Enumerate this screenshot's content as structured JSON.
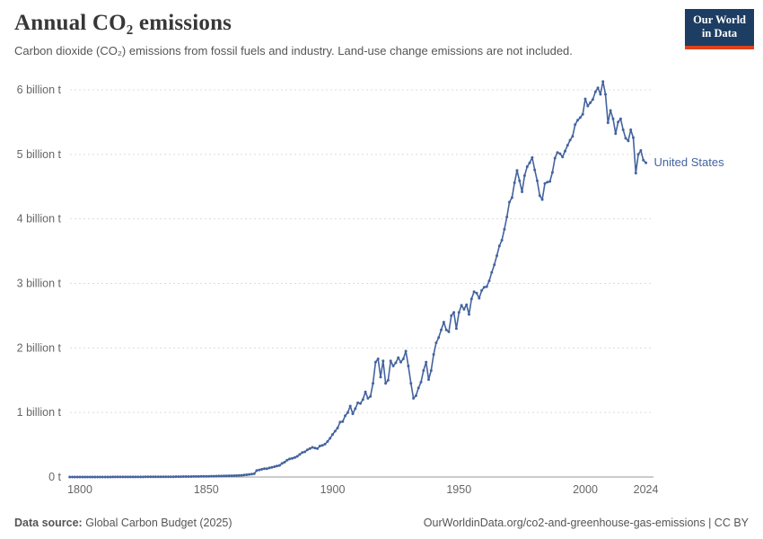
{
  "header": {
    "title": "Annual CO₂ emissions",
    "subtitle": "Carbon dioxide (CO₂) emissions from fossil fuels and industry. Land-use change emissions are not included.",
    "logo": {
      "line1": "Our World",
      "line2": "in Data",
      "bg": "#1d3d63",
      "accent": "#e0421c"
    }
  },
  "chart_data": {
    "type": "line",
    "title": "Annual CO₂ emissions",
    "xlabel": "",
    "ylabel": "",
    "xlim": [
      1796,
      2024
    ],
    "ylim": [
      0,
      6.3
    ],
    "grid": "horizontal-dashed",
    "legend_position": "line-end-label",
    "x_ticks": [
      1800,
      1850,
      1900,
      1950,
      2000,
      2024
    ],
    "y_ticks": [
      {
        "value": 0,
        "label": "0 t"
      },
      {
        "value": 1,
        "label": "1 billion t"
      },
      {
        "value": 2,
        "label": "2 billion t"
      },
      {
        "value": 3,
        "label": "3 billion t"
      },
      {
        "value": 4,
        "label": "4 billion t"
      },
      {
        "value": 5,
        "label": "5 billion t"
      },
      {
        "value": 6,
        "label": "6 billion t"
      }
    ],
    "colors": {
      "line": "#44639f",
      "grid": "#dcdcdc",
      "axis": "#9a9a9a",
      "tick_text": "#666666"
    },
    "series": [
      {
        "name": "United States",
        "color": "#44639f",
        "unit": "billion tonnes",
        "points": [
          [
            1796,
            0.0002
          ],
          [
            1800,
            0.0003
          ],
          [
            1805,
            0.0004
          ],
          [
            1810,
            0.0006
          ],
          [
            1815,
            0.0008
          ],
          [
            1820,
            0.001
          ],
          [
            1825,
            0.002
          ],
          [
            1830,
            0.003
          ],
          [
            1835,
            0.004
          ],
          [
            1840,
            0.006
          ],
          [
            1845,
            0.008
          ],
          [
            1850,
            0.01
          ],
          [
            1855,
            0.015
          ],
          [
            1860,
            0.02
          ],
          [
            1862,
            0.022
          ],
          [
            1864,
            0.026
          ],
          [
            1865,
            0.03
          ],
          [
            1866,
            0.035
          ],
          [
            1867,
            0.04
          ],
          [
            1868,
            0.045
          ],
          [
            1869,
            0.05
          ],
          [
            1870,
            0.1
          ],
          [
            1871,
            0.11
          ],
          [
            1872,
            0.12
          ],
          [
            1873,
            0.13
          ],
          [
            1874,
            0.13
          ],
          [
            1875,
            0.14
          ],
          [
            1876,
            0.15
          ],
          [
            1877,
            0.16
          ],
          [
            1878,
            0.17
          ],
          [
            1879,
            0.18
          ],
          [
            1880,
            0.21
          ],
          [
            1881,
            0.23
          ],
          [
            1882,
            0.26
          ],
          [
            1883,
            0.28
          ],
          [
            1884,
            0.29
          ],
          [
            1885,
            0.3
          ],
          [
            1886,
            0.32
          ],
          [
            1887,
            0.35
          ],
          [
            1888,
            0.38
          ],
          [
            1889,
            0.39
          ],
          [
            1890,
            0.42
          ],
          [
            1891,
            0.44
          ],
          [
            1892,
            0.46
          ],
          [
            1893,
            0.45
          ],
          [
            1894,
            0.44
          ],
          [
            1895,
            0.48
          ],
          [
            1896,
            0.49
          ],
          [
            1897,
            0.51
          ],
          [
            1898,
            0.55
          ],
          [
            1899,
            0.6
          ],
          [
            1900,
            0.66
          ],
          [
            1901,
            0.71
          ],
          [
            1902,
            0.76
          ],
          [
            1903,
            0.85
          ],
          [
            1904,
            0.86
          ],
          [
            1905,
            0.95
          ],
          [
            1906,
            1.0
          ],
          [
            1907,
            1.1
          ],
          [
            1908,
            0.98
          ],
          [
            1909,
            1.06
          ],
          [
            1910,
            1.15
          ],
          [
            1911,
            1.14
          ],
          [
            1912,
            1.2
          ],
          [
            1913,
            1.32
          ],
          [
            1914,
            1.22
          ],
          [
            1915,
            1.25
          ],
          [
            1916,
            1.45
          ],
          [
            1917,
            1.78
          ],
          [
            1918,
            1.83
          ],
          [
            1919,
            1.55
          ],
          [
            1920,
            1.8
          ],
          [
            1921,
            1.45
          ],
          [
            1922,
            1.5
          ],
          [
            1923,
            1.8
          ],
          [
            1924,
            1.72
          ],
          [
            1925,
            1.77
          ],
          [
            1926,
            1.85
          ],
          [
            1927,
            1.78
          ],
          [
            1928,
            1.83
          ],
          [
            1929,
            1.95
          ],
          [
            1930,
            1.72
          ],
          [
            1931,
            1.45
          ],
          [
            1932,
            1.22
          ],
          [
            1933,
            1.26
          ],
          [
            1934,
            1.38
          ],
          [
            1935,
            1.47
          ],
          [
            1936,
            1.65
          ],
          [
            1937,
            1.78
          ],
          [
            1938,
            1.51
          ],
          [
            1939,
            1.65
          ],
          [
            1940,
            1.9
          ],
          [
            1941,
            2.08
          ],
          [
            1942,
            2.16
          ],
          [
            1943,
            2.28
          ],
          [
            1944,
            2.4
          ],
          [
            1945,
            2.28
          ],
          [
            1946,
            2.25
          ],
          [
            1947,
            2.5
          ],
          [
            1948,
            2.55
          ],
          [
            1949,
            2.3
          ],
          [
            1950,
            2.55
          ],
          [
            1951,
            2.66
          ],
          [
            1952,
            2.6
          ],
          [
            1953,
            2.67
          ],
          [
            1954,
            2.52
          ],
          [
            1955,
            2.76
          ],
          [
            1956,
            2.87
          ],
          [
            1957,
            2.85
          ],
          [
            1958,
            2.77
          ],
          [
            1959,
            2.89
          ],
          [
            1960,
            2.94
          ],
          [
            1961,
            2.95
          ],
          [
            1962,
            3.04
          ],
          [
            1963,
            3.17
          ],
          [
            1964,
            3.29
          ],
          [
            1965,
            3.43
          ],
          [
            1966,
            3.58
          ],
          [
            1967,
            3.67
          ],
          [
            1968,
            3.84
          ],
          [
            1969,
            4.03
          ],
          [
            1970,
            4.26
          ],
          [
            1971,
            4.33
          ],
          [
            1972,
            4.56
          ],
          [
            1973,
            4.75
          ],
          [
            1974,
            4.59
          ],
          [
            1975,
            4.42
          ],
          [
            1976,
            4.67
          ],
          [
            1977,
            4.81
          ],
          [
            1978,
            4.87
          ],
          [
            1979,
            4.95
          ],
          [
            1980,
            4.76
          ],
          [
            1981,
            4.59
          ],
          [
            1982,
            4.36
          ],
          [
            1983,
            4.3
          ],
          [
            1984,
            4.55
          ],
          [
            1985,
            4.57
          ],
          [
            1986,
            4.58
          ],
          [
            1987,
            4.72
          ],
          [
            1988,
            4.94
          ],
          [
            1989,
            5.03
          ],
          [
            1990,
            5.01
          ],
          [
            1991,
            4.96
          ],
          [
            1992,
            5.05
          ],
          [
            1993,
            5.14
          ],
          [
            1994,
            5.22
          ],
          [
            1995,
            5.28
          ],
          [
            1996,
            5.46
          ],
          [
            1997,
            5.53
          ],
          [
            1998,
            5.57
          ],
          [
            1999,
            5.62
          ],
          [
            2000,
            5.86
          ],
          [
            2001,
            5.75
          ],
          [
            2002,
            5.8
          ],
          [
            2003,
            5.85
          ],
          [
            2004,
            5.97
          ],
          [
            2005,
            6.03
          ],
          [
            2006,
            5.93
          ],
          [
            2007,
            6.13
          ],
          [
            2008,
            5.93
          ],
          [
            2009,
            5.49
          ],
          [
            2010,
            5.68
          ],
          [
            2011,
            5.55
          ],
          [
            2012,
            5.32
          ],
          [
            2013,
            5.5
          ],
          [
            2014,
            5.55
          ],
          [
            2015,
            5.38
          ],
          [
            2016,
            5.25
          ],
          [
            2017,
            5.21
          ],
          [
            2018,
            5.38
          ],
          [
            2019,
            5.26
          ],
          [
            2020,
            4.71
          ],
          [
            2021,
            5.0
          ],
          [
            2022,
            5.06
          ],
          [
            2023,
            4.91
          ],
          [
            2024,
            4.87
          ]
        ]
      }
    ]
  },
  "footer": {
    "source_label": "Data source:",
    "source_value": "Global Carbon Budget (2025)",
    "attribution": "OurWorldinData.org/co2-and-greenhouse-gas-emissions | CC BY"
  }
}
